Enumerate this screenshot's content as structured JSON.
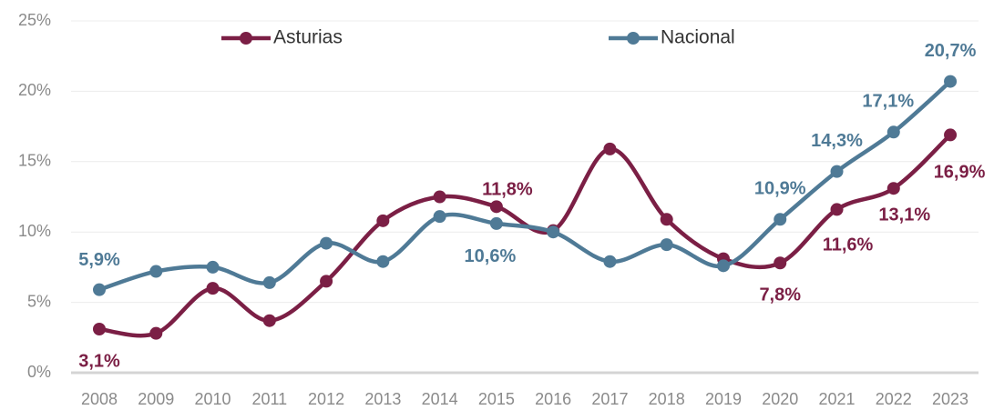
{
  "chart_data": {
    "type": "line",
    "categories": [
      "2008",
      "2009",
      "2010",
      "2011",
      "2012",
      "2013",
      "2014",
      "2015",
      "2016",
      "2017",
      "2018",
      "2019",
      "2020",
      "2021",
      "2022",
      "2023"
    ],
    "series": [
      {
        "name": "Asturias",
        "color": "#7b1f45",
        "values": [
          3.1,
          2.8,
          6.0,
          3.7,
          6.5,
          10.8,
          12.5,
          11.8,
          10.1,
          15.9,
          10.9,
          8.1,
          7.8,
          11.6,
          13.1,
          16.9
        ],
        "value_labels": [
          "3,1%",
          null,
          null,
          null,
          null,
          null,
          null,
          "11,8%",
          null,
          null,
          null,
          null,
          "7,8%",
          "11,6%",
          "13,1%",
          "16,9%"
        ]
      },
      {
        "name": "Nacional",
        "color": "#4f7a96",
        "values": [
          5.9,
          7.2,
          7.5,
          6.4,
          9.2,
          7.9,
          11.1,
          10.6,
          10.0,
          7.9,
          9.1,
          7.6,
          10.9,
          14.3,
          17.1,
          20.7
        ],
        "value_labels": [
          "5,9%",
          null,
          null,
          null,
          null,
          null,
          null,
          "10,6%",
          null,
          null,
          null,
          null,
          "10,9%",
          "14,3%",
          "17,1%",
          "20,7%"
        ]
      }
    ],
    "ylim": [
      0,
      25
    ],
    "yticks": [
      {
        "value": 0,
        "label": "0%"
      },
      {
        "value": 5,
        "label": "5%"
      },
      {
        "value": 10,
        "label": "10%"
      },
      {
        "value": 15,
        "label": "15%"
      },
      {
        "value": 20,
        "label": "20%"
      },
      {
        "value": 25,
        "label": "25%"
      }
    ],
    "grid": true,
    "legend": "top"
  }
}
